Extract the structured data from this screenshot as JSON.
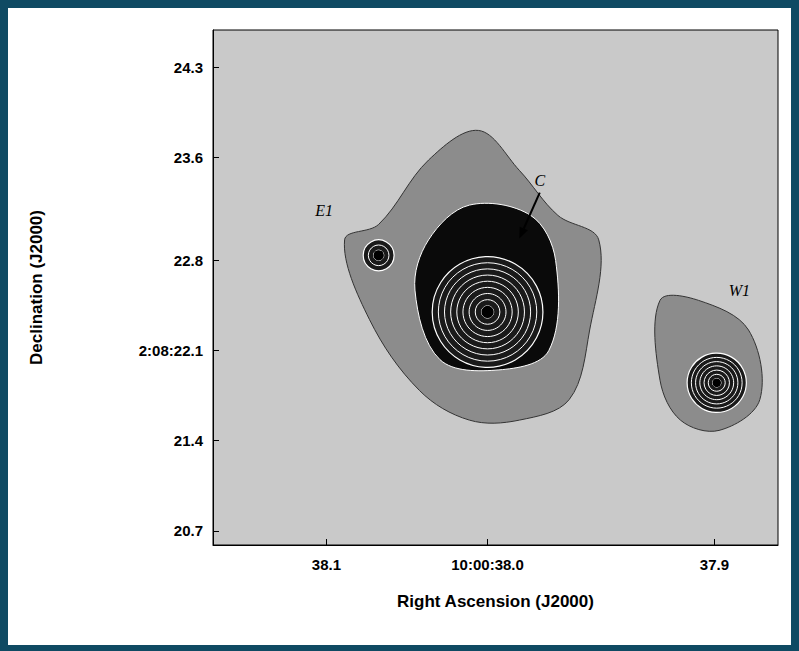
{
  "chart_data": {
    "type": "contour_image",
    "xlabel": "Right Ascension (J2000)",
    "ylabel": "Declination (J2000)",
    "xlim": [
      38.121,
      37.872
    ],
    "ylim": [
      20.59,
      24.59
    ],
    "xticks": [
      {
        "value": 38.071,
        "label": "38.1"
      },
      {
        "value": 38.0,
        "label": "10:00:38.0"
      },
      {
        "value": 37.9,
        "label": "37.9"
      }
    ],
    "yticks": [
      24.3,
      23.6,
      22.8,
      {
        "value": 22.1,
        "label": "2:08:22.1"
      },
      21.4,
      20.7
    ],
    "color": "#c9c9c9",
    "halos": [
      {
        "level": 1,
        "points": [
          [
            38.063,
            22.96
          ],
          [
            38.048,
            23.08
          ],
          [
            38.026,
            23.58
          ],
          [
            38.004,
            23.81
          ],
          [
            37.986,
            23.5
          ],
          [
            37.969,
            23.15
          ],
          [
            37.951,
            22.96
          ],
          [
            37.955,
            22.26
          ],
          [
            37.964,
            21.72
          ],
          [
            37.986,
            21.56
          ],
          [
            38.008,
            21.56
          ],
          [
            38.03,
            21.79
          ],
          [
            38.052,
            22.34
          ]
        ]
      },
      {
        "level": 1,
        "points": [
          [
            37.924,
            22.49
          ],
          [
            37.907,
            22.49
          ],
          [
            37.885,
            22.26
          ],
          [
            37.88,
            21.72
          ],
          [
            37.898,
            21.48
          ],
          [
            37.915,
            21.56
          ],
          [
            37.924,
            21.87
          ]
        ]
      },
      {
        "level": 2,
        "points": [
          [
            38.026,
            22.96
          ],
          [
            38.008,
            23.23
          ],
          [
            37.981,
            23.15
          ],
          [
            37.97,
            22.8
          ],
          [
            37.973,
            22.1
          ],
          [
            37.995,
            21.95
          ],
          [
            38.021,
            22.03
          ],
          [
            38.032,
            22.57
          ]
        ]
      }
    ],
    "sources": [
      {
        "ra": 38.0,
        "dec": 22.4,
        "radius": 0.43,
        "levels": 9
      },
      {
        "ra": 38.048,
        "dec": 22.84,
        "radius": 0.12,
        "levels": 3
      },
      {
        "ra": 37.899,
        "dec": 21.85,
        "radius": 0.23,
        "levels": 7
      }
    ],
    "annotations": [
      {
        "text": "C",
        "x": 37.977,
        "y": 23.42,
        "arrow_to": [
          37.986,
          22.97
        ]
      },
      {
        "text": "E1",
        "x": 38.072,
        "y": 23.19
      },
      {
        "text": "W1",
        "x": 37.889,
        "y": 22.57
      }
    ]
  }
}
